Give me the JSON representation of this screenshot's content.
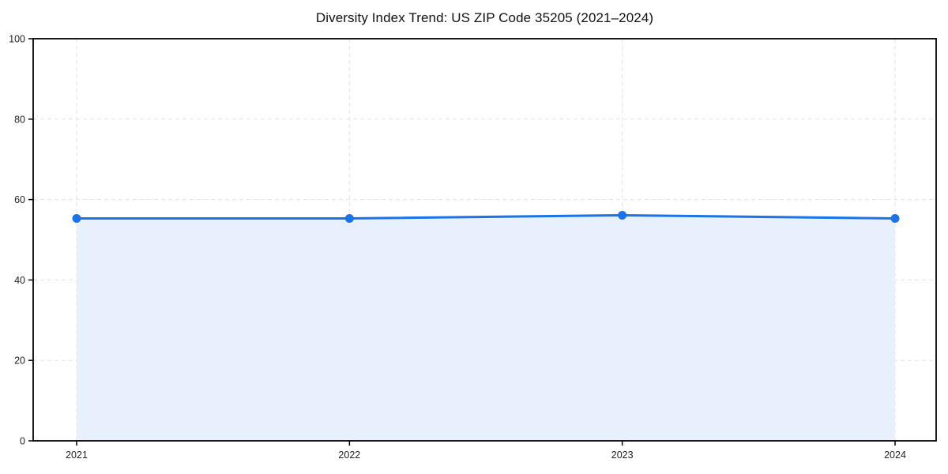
{
  "chart_data": {
    "type": "area",
    "title": "Diversity Index Trend: US ZIP Code 35205 (2021–2024)",
    "categories": [
      "2021",
      "2022",
      "2023",
      "2024"
    ],
    "series": [
      {
        "name": "Diversity Index",
        "values": [
          55.3,
          55.3,
          56.1,
          55.3
        ]
      }
    ],
    "xlabel": "",
    "ylabel": "",
    "ylim": [
      0,
      100
    ],
    "yticks": [
      0,
      20,
      40,
      60,
      80,
      100
    ],
    "grid": true,
    "grid_style": "dashed",
    "legend": "none",
    "colors": {
      "line": "#1a73e8",
      "marker": "#1a73e8",
      "fill": "#e8f0fd",
      "grid": "#e3e3e3",
      "axis": "#000000",
      "tick_label": "#222222",
      "title": "#111111"
    }
  }
}
